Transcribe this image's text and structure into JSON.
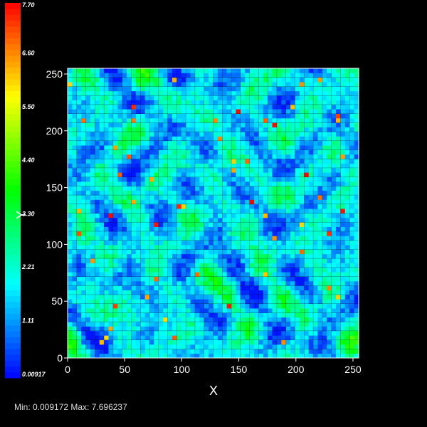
{
  "chart_data": {
    "type": "heatmap",
    "title": "",
    "xlabel": "X",
    "ylabel": "Y",
    "xlim": [
      0,
      255
    ],
    "ylim": [
      0,
      255
    ],
    "x_ticks": [
      "0",
      "50",
      "100",
      "150",
      "200",
      "250"
    ],
    "y_ticks": [
      "0",
      "50",
      "100",
      "150",
      "200",
      "250"
    ],
    "x_tick_values": [
      0,
      50,
      100,
      150,
      200,
      250
    ],
    "y_tick_values": [
      0,
      50,
      100,
      150,
      200,
      250
    ],
    "grid": false,
    "colorbar": {
      "range": [
        0.00917,
        7.7
      ],
      "labels": [
        "7.70",
        "6.60",
        "5.50",
        "4.40",
        "3.30",
        "2.21",
        "1.11",
        "0.00917"
      ],
      "label_values": [
        7.7,
        6.6,
        5.5,
        4.4,
        3.3,
        2.21,
        1.11,
        0.00917
      ],
      "placement": "left",
      "colormap": "rainbow (blue-cyan-green-yellow-red)"
    },
    "stats": "Min: 0.009172 Max: 7.696237",
    "min": 0.009172,
    "max": 7.696237
  }
}
